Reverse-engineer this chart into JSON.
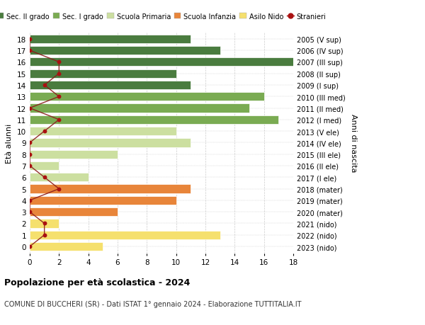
{
  "title_bold": "Popolazione per età scolastica - 2024",
  "subtitle": "COMUNE DI BUCCHERI (SR) - Dati ISTAT 1° gennaio 2024 - Elaborazione TUTTITALIA.IT",
  "ylabel_left": "Età alunni",
  "ylabel_right": "Anni di nascita",
  "xlim": [
    0,
    18
  ],
  "xticks": [
    0,
    2,
    4,
    6,
    8,
    10,
    12,
    14,
    16,
    18
  ],
  "ages": [
    0,
    1,
    2,
    3,
    4,
    5,
    6,
    7,
    8,
    9,
    10,
    11,
    12,
    13,
    14,
    15,
    16,
    17,
    18
  ],
  "right_labels": [
    "2023 (nido)",
    "2022 (nido)",
    "2021 (nido)",
    "2020 (mater)",
    "2019 (mater)",
    "2018 (mater)",
    "2017 (I ele)",
    "2016 (II ele)",
    "2015 (III ele)",
    "2014 (IV ele)",
    "2013 (V ele)",
    "2012 (I med)",
    "2011 (II med)",
    "2010 (III med)",
    "2009 (I sup)",
    "2008 (II sup)",
    "2007 (III sup)",
    "2006 (IV sup)",
    "2005 (V sup)"
  ],
  "bar_values": [
    5,
    13,
    2,
    6,
    10,
    11,
    4,
    2,
    6,
    11,
    10,
    17,
    15,
    16,
    11,
    10,
    18,
    13,
    11
  ],
  "bar_colors": [
    "#f5e06e",
    "#f5e06e",
    "#f5e06e",
    "#e8853a",
    "#e8853a",
    "#e8853a",
    "#ccdfa0",
    "#ccdfa0",
    "#ccdfa0",
    "#ccdfa0",
    "#ccdfa0",
    "#7aab52",
    "#7aab52",
    "#7aab52",
    "#4a7c3f",
    "#4a7c3f",
    "#4a7c3f",
    "#4a7c3f",
    "#4a7c3f"
  ],
  "stranieri_values": [
    0,
    1,
    1,
    0,
    0,
    2,
    1,
    0,
    0,
    0,
    1,
    2,
    0,
    2,
    1,
    2,
    2,
    0,
    0
  ],
  "legend_labels": [
    "Sec. II grado",
    "Sec. I grado",
    "Scuola Primaria",
    "Scuola Infanzia",
    "Asilo Nido",
    "Stranieri"
  ],
  "legend_colors": [
    "#4a7c3f",
    "#7aab52",
    "#ccdfa0",
    "#e8853a",
    "#f5e06e",
    "#aa1111"
  ],
  "bg_color": "#ffffff",
  "grid_color": "#cccccc",
  "bar_height": 0.75
}
